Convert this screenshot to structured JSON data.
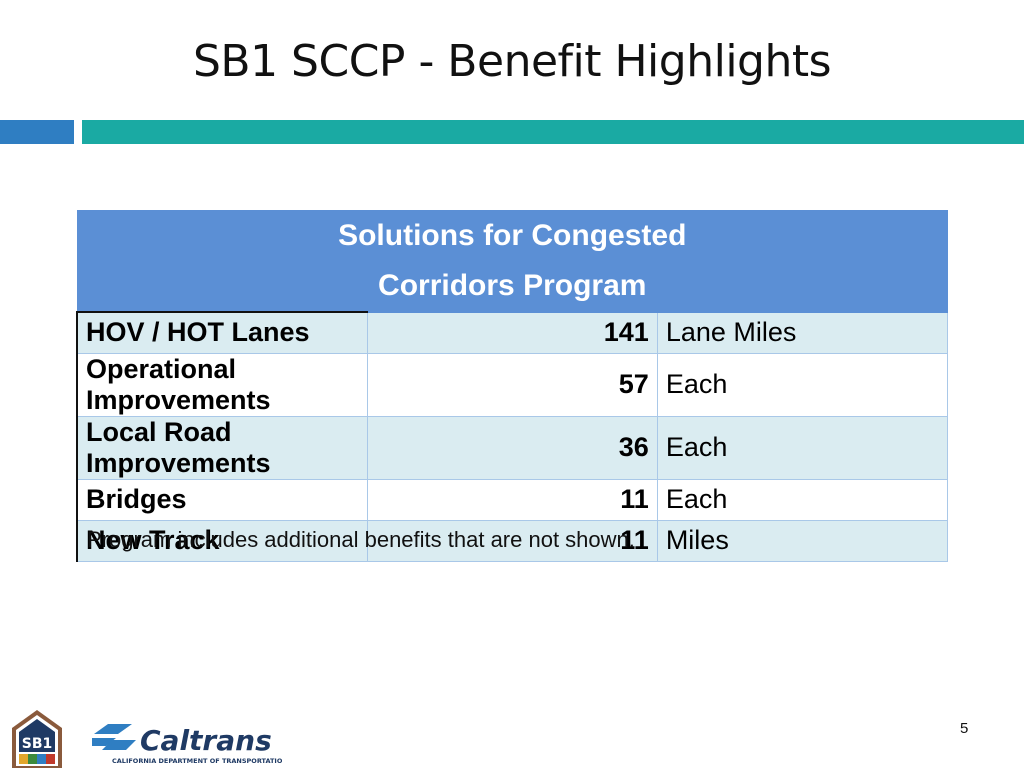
{
  "slide": {
    "title": "SB1 SCCP - Benefit Highlights",
    "page_number": "5",
    "note": "Program includes additional benefits that are not shown."
  },
  "table": {
    "header_line1": "Solutions for Congested",
    "header_line2": "Corridors Program",
    "rows": [
      {
        "label": "HOV / HOT Lanes",
        "value": "141",
        "unit": "Lane Miles"
      },
      {
        "label": "Operational Improvements",
        "value": "57",
        "unit": "Each"
      },
      {
        "label": "Local Road Improvements",
        "value": "36",
        "unit": "Each"
      },
      {
        "label": "Bridges",
        "value": "11",
        "unit": "Each"
      },
      {
        "label": "New Track",
        "value": "11",
        "unit": "Miles"
      }
    ]
  },
  "logos": {
    "sb1_text": "SB1",
    "caltrans_text": "Caltrans",
    "caltrans_subtitle": "CALIFORNIA DEPARTMENT OF TRANSPORTATION"
  },
  "colors": {
    "accent_blue": "#2f7ec2",
    "accent_teal": "#1aaaa3",
    "header_blue": "#5b8fd5",
    "row_tint": "#daecf1"
  }
}
